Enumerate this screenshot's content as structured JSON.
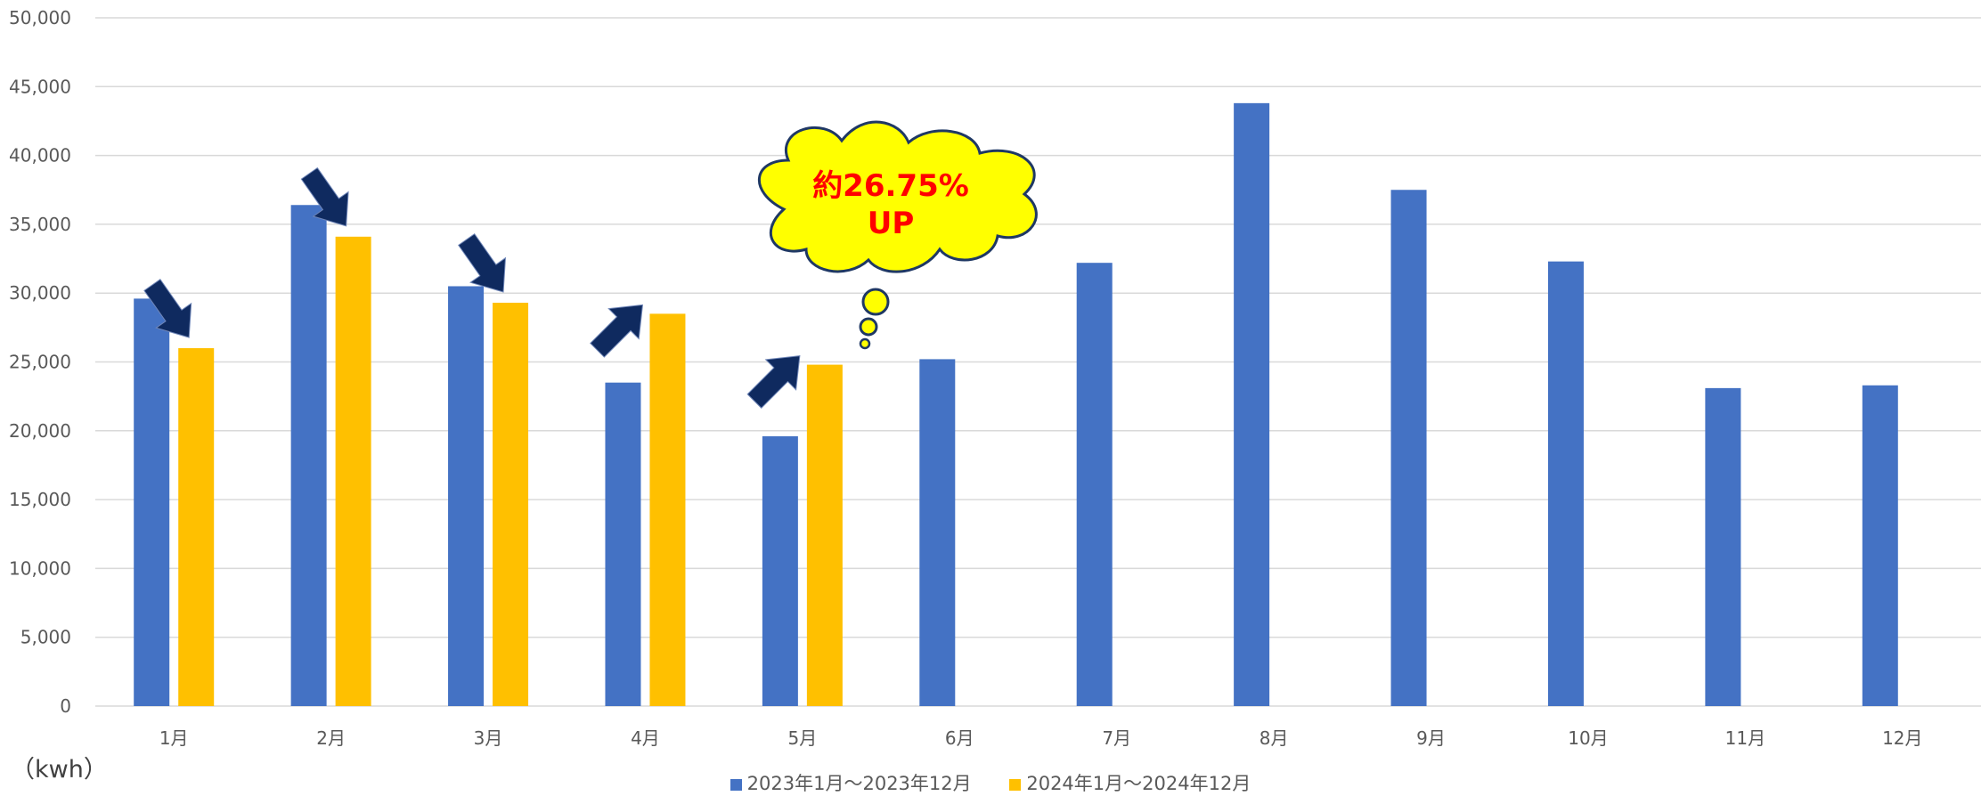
{
  "chart_data": {
    "type": "bar",
    "categories": [
      "1月",
      "2月",
      "3月",
      "4月",
      "5月",
      "6月",
      "7月",
      "8月",
      "9月",
      "10月",
      "11月",
      "12月"
    ],
    "series": [
      {
        "name": "2023年1月～2023年12月",
        "color": "#4472C4",
        "values": [
          29600,
          36400,
          30500,
          23500,
          19600,
          25200,
          32200,
          43800,
          37500,
          32300,
          23100,
          23300
        ]
      },
      {
        "name": "2024年1月～2024年12月",
        "color": "#FFC000",
        "values": [
          26000,
          34100,
          29300,
          28500,
          24800,
          null,
          null,
          null,
          null,
          null,
          null,
          null
        ]
      }
    ],
    "ylim": [
      0,
      50000
    ],
    "yticks": [
      "0",
      "5,000",
      "10,000",
      "15,000",
      "20,000",
      "25,000",
      "30,000",
      "35,000",
      "40,000",
      "45,000",
      "50,000"
    ],
    "ylabel": "（kwh）",
    "grid": true,
    "legend_position": "bottom",
    "annotations": {
      "callout_line1": "約26.75%",
      "callout_line2": "UP",
      "arrows": [
        {
          "category": "1月",
          "direction": "down"
        },
        {
          "category": "2月",
          "direction": "down"
        },
        {
          "category": "3月",
          "direction": "down"
        },
        {
          "category": "4月",
          "direction": "up"
        },
        {
          "category": "5月",
          "direction": "up"
        }
      ]
    }
  },
  "colors": {
    "arrow": "#0F2A5F",
    "cloud_fill": "#FFFF00",
    "callout_text": "#FF0000",
    "grid": "#D9D9D9"
  }
}
